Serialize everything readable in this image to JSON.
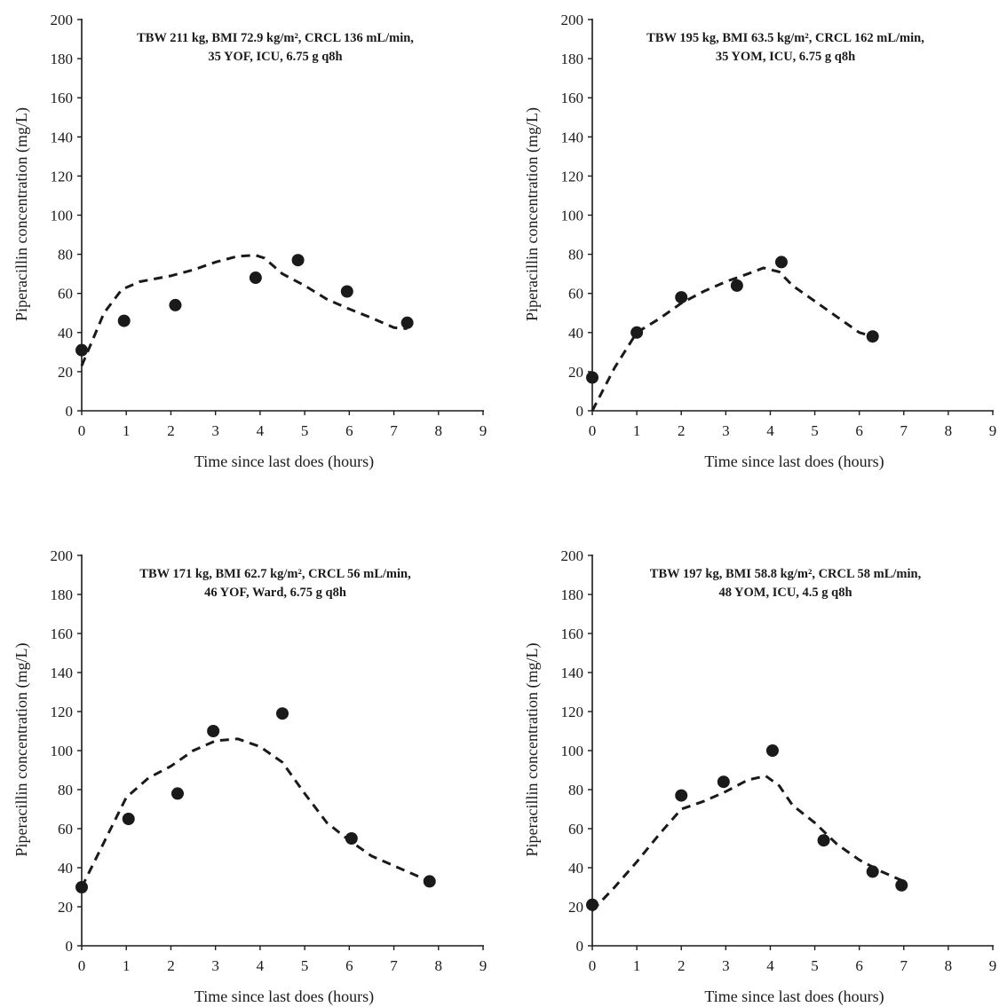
{
  "chart_data": [
    {
      "type": "scatter",
      "title_lines": [
        "TBW 211 kg, BMI 72.9 kg/m², CRCL 136 mL/min,",
        "35 YOF, ICU, 6.75 g q8h"
      ],
      "xlabel": "Time since last does (hours)",
      "ylabel": "Piperacillin concentration (mg/L)",
      "xlim": [
        0,
        9
      ],
      "ylim": [
        0,
        200
      ],
      "xticks": [
        0,
        1,
        2,
        3,
        4,
        5,
        6,
        7,
        8,
        9
      ],
      "yticks": [
        0,
        20,
        40,
        60,
        80,
        100,
        120,
        140,
        160,
        180,
        200
      ],
      "observed": [
        [
          0,
          31
        ],
        [
          0.95,
          46
        ],
        [
          2.1,
          54
        ],
        [
          3.9,
          68
        ],
        [
          4.85,
          77
        ],
        [
          5.95,
          61
        ],
        [
          7.3,
          45
        ]
      ],
      "fitted": [
        [
          0,
          23
        ],
        [
          0.15,
          31
        ],
        [
          0.5,
          50
        ],
        [
          0.9,
          62
        ],
        [
          1.3,
          66
        ],
        [
          2.0,
          69
        ],
        [
          2.5,
          72
        ],
        [
          3.0,
          76
        ],
        [
          3.5,
          79
        ],
        [
          3.9,
          79.5
        ],
        [
          4.1,
          78
        ],
        [
          4.5,
          70
        ],
        [
          5.0,
          64
        ],
        [
          5.5,
          57
        ],
        [
          6.0,
          52
        ],
        [
          6.5,
          47.5
        ],
        [
          7.0,
          42.5
        ],
        [
          7.3,
          42
        ]
      ]
    },
    {
      "type": "scatter",
      "title_lines": [
        "TBW 195 kg, BMI 63.5 kg/m², CRCL 162 mL/min,",
        "35 YOM, ICU, 6.75 g q8h"
      ],
      "xlabel": "Time since last does (hours)",
      "ylabel": "Piperacillin concentration (mg/L)",
      "xlim": [
        0,
        9
      ],
      "ylim": [
        0,
        200
      ],
      "xticks": [
        0,
        1,
        2,
        3,
        4,
        5,
        6,
        7,
        8,
        9
      ],
      "yticks": [
        0,
        20,
        40,
        60,
        80,
        100,
        120,
        140,
        160,
        180,
        200
      ],
      "observed": [
        [
          0,
          17
        ],
        [
          1.0,
          40
        ],
        [
          2.0,
          58
        ],
        [
          3.25,
          64
        ],
        [
          4.25,
          76
        ],
        [
          6.3,
          38
        ]
      ],
      "fitted": [
        [
          0,
          0
        ],
        [
          0.5,
          22
        ],
        [
          1.0,
          40
        ],
        [
          1.5,
          47
        ],
        [
          2.0,
          55
        ],
        [
          2.5,
          61
        ],
        [
          3.0,
          66
        ],
        [
          3.5,
          70
        ],
        [
          3.85,
          73
        ],
        [
          4.2,
          71
        ],
        [
          4.5,
          64
        ],
        [
          5.0,
          56
        ],
        [
          5.5,
          48
        ],
        [
          6.0,
          40
        ],
        [
          6.3,
          38
        ]
      ]
    },
    {
      "type": "scatter",
      "title_lines": [
        "TBW 171 kg, BMI 62.7 kg/m², CRCL 56 mL/min,",
        "46 YOF, Ward, 6.75 g q8h"
      ],
      "xlabel": "Time since last does (hours)",
      "ylabel": "Piperacillin concentration (mg/L)",
      "xlim": [
        0,
        9
      ],
      "ylim": [
        0,
        200
      ],
      "xticks": [
        0,
        1,
        2,
        3,
        4,
        5,
        6,
        7,
        8,
        9
      ],
      "yticks": [
        0,
        20,
        40,
        60,
        80,
        100,
        120,
        140,
        160,
        180,
        200
      ],
      "observed": [
        [
          0,
          30
        ],
        [
          1.05,
          65
        ],
        [
          2.15,
          78
        ],
        [
          2.95,
          110
        ],
        [
          4.5,
          119
        ],
        [
          6.05,
          55
        ],
        [
          7.8,
          33
        ]
      ],
      "fitted": [
        [
          0,
          30
        ],
        [
          0.5,
          53
        ],
        [
          1.0,
          76
        ],
        [
          1.5,
          86
        ],
        [
          2.0,
          92
        ],
        [
          2.5,
          100
        ],
        [
          3.0,
          105
        ],
        [
          3.5,
          106
        ],
        [
          4.0,
          102
        ],
        [
          4.5,
          94
        ],
        [
          5.0,
          78
        ],
        [
          5.5,
          63
        ],
        [
          6.0,
          54
        ],
        [
          6.5,
          46
        ],
        [
          7.0,
          41
        ],
        [
          7.5,
          36
        ],
        [
          7.8,
          33
        ]
      ]
    },
    {
      "type": "scatter",
      "title_lines": [
        "TBW 197 kg, BMI 58.8 kg/m², CRCL 58 mL/min,",
        "48 YOM, ICU, 4.5 g q8h"
      ],
      "xlabel": "Time since last does (hours)",
      "ylabel": "Piperacillin concentration (mg/L)",
      "xlim": [
        0,
        9
      ],
      "ylim": [
        0,
        200
      ],
      "xticks": [
        0,
        1,
        2,
        3,
        4,
        5,
        6,
        7,
        8,
        9
      ],
      "yticks": [
        0,
        20,
        40,
        60,
        80,
        100,
        120,
        140,
        160,
        180,
        200
      ],
      "observed": [
        [
          0,
          21
        ],
        [
          2.0,
          77
        ],
        [
          2.95,
          84
        ],
        [
          4.05,
          100
        ],
        [
          5.2,
          54
        ],
        [
          6.3,
          38
        ],
        [
          6.95,
          31
        ]
      ],
      "fitted": [
        [
          0,
          18
        ],
        [
          0.5,
          30
        ],
        [
          1.0,
          43
        ],
        [
          1.5,
          57
        ],
        [
          2.0,
          70
        ],
        [
          2.5,
          74
        ],
        [
          3.0,
          79
        ],
        [
          3.5,
          85
        ],
        [
          3.9,
          87
        ],
        [
          4.2,
          82
        ],
        [
          4.5,
          72
        ],
        [
          5.0,
          63
        ],
        [
          5.5,
          52
        ],
        [
          6.0,
          44
        ],
        [
          6.5,
          38
        ],
        [
          7.0,
          33
        ]
      ]
    }
  ]
}
